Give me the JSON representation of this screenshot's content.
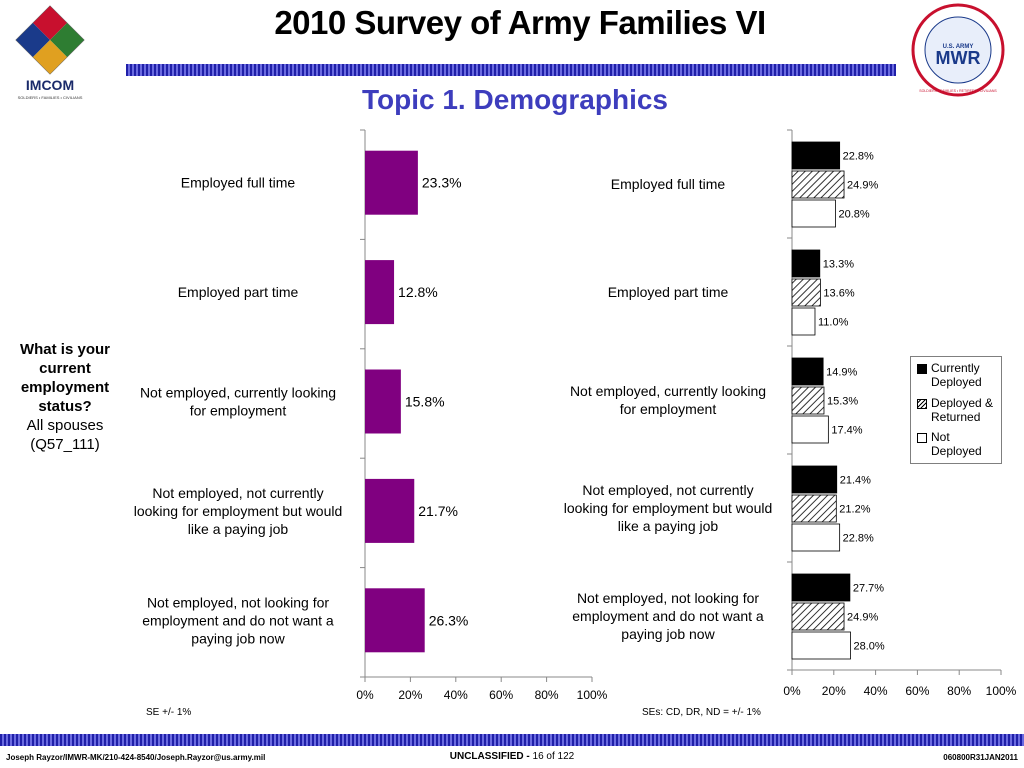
{
  "header": {
    "title": "2010 Survey of Army Families VI",
    "subtitle": "Topic 1. Demographics",
    "left_logo_text": "IMCOM",
    "left_logo_tagline": "SOLDIERS • FAMILIES • CIVILIANS",
    "right_logo_text_top": "U.S. ARMY",
    "right_logo_text": "MWR",
    "right_logo_ring": "SOLDIERS • FAMILIES • RETIREES • CIVILIANS"
  },
  "question": {
    "line1": "What is your current employment status?",
    "line2": "All spouses",
    "line3": "(Q57_111)"
  },
  "notes": {
    "left": "SE +/- 1%",
    "right": "SEs: CD, DR, ND = +/- 1%"
  },
  "footer": {
    "left": "Joseph Rayzor/IMWR-MK/210-424-8540/Joseph.Rayzor@us.army.mil",
    "classification": "UNCLASSIFIED -",
    "page": "16 of 122",
    "right": "060800R31JAN2011"
  },
  "colors": {
    "bar_left": "#800080",
    "title_blue": "#3d3dbd",
    "currently_deployed": "#000000",
    "deployed_returned": "hatched",
    "not_deployed": "#ffffff"
  },
  "legend": {
    "items": [
      "Currently Deployed",
      "Deployed & Returned",
      "Not Deployed"
    ]
  },
  "chart_data": [
    {
      "type": "bar",
      "orientation": "horizontal",
      "categories": [
        "Employed full time",
        "Employed part time",
        "Not employed, currently looking for employment",
        "Not employed, not currently looking for employment but would like a paying job",
        "Not employed, not looking for employment and do not want a paying job now"
      ],
      "values": [
        23.3,
        12.8,
        15.8,
        21.7,
        26.3
      ],
      "value_labels": [
        "23.3%",
        "12.8%",
        "15.8%",
        "21.7%",
        "26.3%"
      ],
      "xlim": [
        0,
        100
      ],
      "x_ticks": [
        "0%",
        "20%",
        "40%",
        "60%",
        "80%",
        "100%"
      ],
      "grid": false
    },
    {
      "type": "bar",
      "orientation": "horizontal",
      "categories": [
        "Employed full time",
        "Employed part time",
        "Not employed, currently looking for employment",
        "Not employed, not currently looking for employment but would like a paying job",
        "Not employed, not looking for employment and do not want a paying job now"
      ],
      "series": [
        {
          "name": "Currently Deployed",
          "values": [
            22.8,
            13.3,
            14.9,
            21.4,
            27.7
          ],
          "labels": [
            "22.8%",
            "13.3%",
            "14.9%",
            "21.4%",
            "27.7%"
          ]
        },
        {
          "name": "Deployed & Returned",
          "values": [
            24.9,
            13.6,
            15.3,
            21.2,
            24.9
          ],
          "labels": [
            "24.9%",
            "13.6%",
            "15.3%",
            "21.2%",
            "24.9%"
          ]
        },
        {
          "name": "Not Deployed",
          "values": [
            20.8,
            11.0,
            17.4,
            22.8,
            28.0
          ],
          "labels": [
            "20.8%",
            "11.0%",
            "17.4%",
            "22.8%",
            "28.0%"
          ]
        }
      ],
      "xlim": [
        0,
        100
      ],
      "x_ticks": [
        "0%",
        "20%",
        "40%",
        "60%",
        "80%",
        "100%"
      ],
      "legend_position": "right",
      "grid": false
    }
  ]
}
